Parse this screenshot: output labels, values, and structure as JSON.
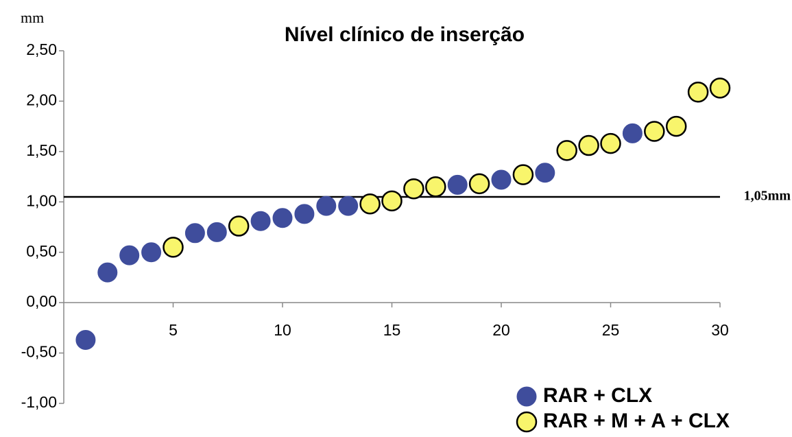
{
  "chart_data": {
    "type": "scatter",
    "title": "Nível clínico de inserção",
    "y_label": "mm",
    "xlim": [
      0,
      30
    ],
    "xticks": [
      5,
      10,
      15,
      20,
      25,
      30
    ],
    "ylim": [
      -1,
      2.5
    ],
    "yticks": [
      {
        "value": -1,
        "label": "-1,00"
      },
      {
        "value": -0.5,
        "label": "-0,50"
      },
      {
        "value": 0,
        "label": "0,00"
      },
      {
        "value": 0.5,
        "label": "0,50"
      },
      {
        "value": 1,
        "label": "1,00"
      },
      {
        "value": 1.5,
        "label": "1,50"
      },
      {
        "value": 2,
        "label": "2,00"
      },
      {
        "value": 2.5,
        "label": "2,50"
      }
    ],
    "reference_line": {
      "value": 1.05,
      "label": "1,05mm"
    },
    "legend_position": "lower right",
    "series": [
      {
        "name": "RAR + CLX",
        "color": "#3f4d9c",
        "x": [
          1,
          2,
          3,
          4,
          6,
          7,
          9,
          10,
          11,
          12,
          13,
          18,
          20,
          22,
          26
        ],
        "values": [
          -0.37,
          0.3,
          0.47,
          0.5,
          0.69,
          0.7,
          0.81,
          0.84,
          0.88,
          0.96,
          0.96,
          1.17,
          1.22,
          1.29,
          1.68
        ]
      },
      {
        "name": "RAR + M + A + CLX",
        "color": "#f8f56c",
        "x": [
          5,
          8,
          14,
          15,
          16,
          17,
          19,
          21,
          23,
          24,
          25,
          27,
          28,
          29,
          30
        ],
        "values": [
          0.55,
          0.76,
          0.98,
          1.01,
          1.13,
          1.15,
          1.18,
          1.27,
          1.51,
          1.56,
          1.58,
          1.7,
          1.75,
          2.09,
          2.13
        ]
      }
    ]
  }
}
